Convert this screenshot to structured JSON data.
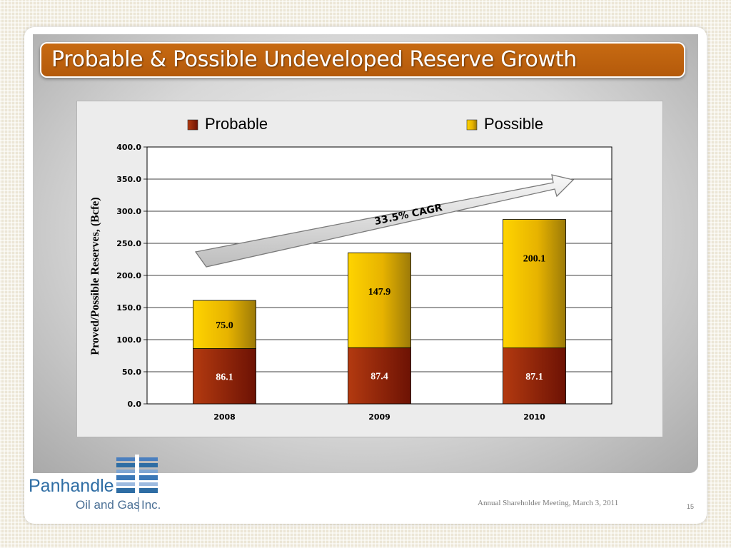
{
  "slide": {
    "title": "Probable & Possible Undeveloped Reserve Growth",
    "footer": "Annual Shareholder Meeting, March 3, 2011",
    "page_number": "15"
  },
  "logo": {
    "line1": "Panhandle",
    "line2": "Oil and Gas",
    "line3": "Inc."
  },
  "colors": {
    "title_bar": "#b85d0c",
    "probable": "#8b1a06",
    "possible": "#e8b800",
    "logo_blue": "#2e6da4"
  },
  "chart_data": {
    "type": "bar",
    "stacked": true,
    "categories": [
      "2008",
      "2009",
      "2010"
    ],
    "series": [
      {
        "name": "Probable",
        "values": [
          86.1,
          87.4,
          87.1
        ],
        "labels": [
          "86.1",
          "87.4",
          "87.1"
        ],
        "color": "#8b1a06"
      },
      {
        "name": "Possible",
        "values": [
          75.0,
          147.9,
          200.1
        ],
        "labels": [
          "75.0",
          "147.9",
          "200.1"
        ],
        "color": "#e8b800"
      }
    ],
    "ylabel": "Proved/Possible Reserves, (Bcfe)",
    "xlabel": "",
    "ylim": [
      0,
      400
    ],
    "yticks": [
      "0.0",
      "50.0",
      "100.0",
      "150.0",
      "200.0",
      "250.0",
      "300.0",
      "350.0",
      "400.0"
    ],
    "grid": true,
    "legend_position": "top",
    "annotation": "33.5% CAGR"
  }
}
